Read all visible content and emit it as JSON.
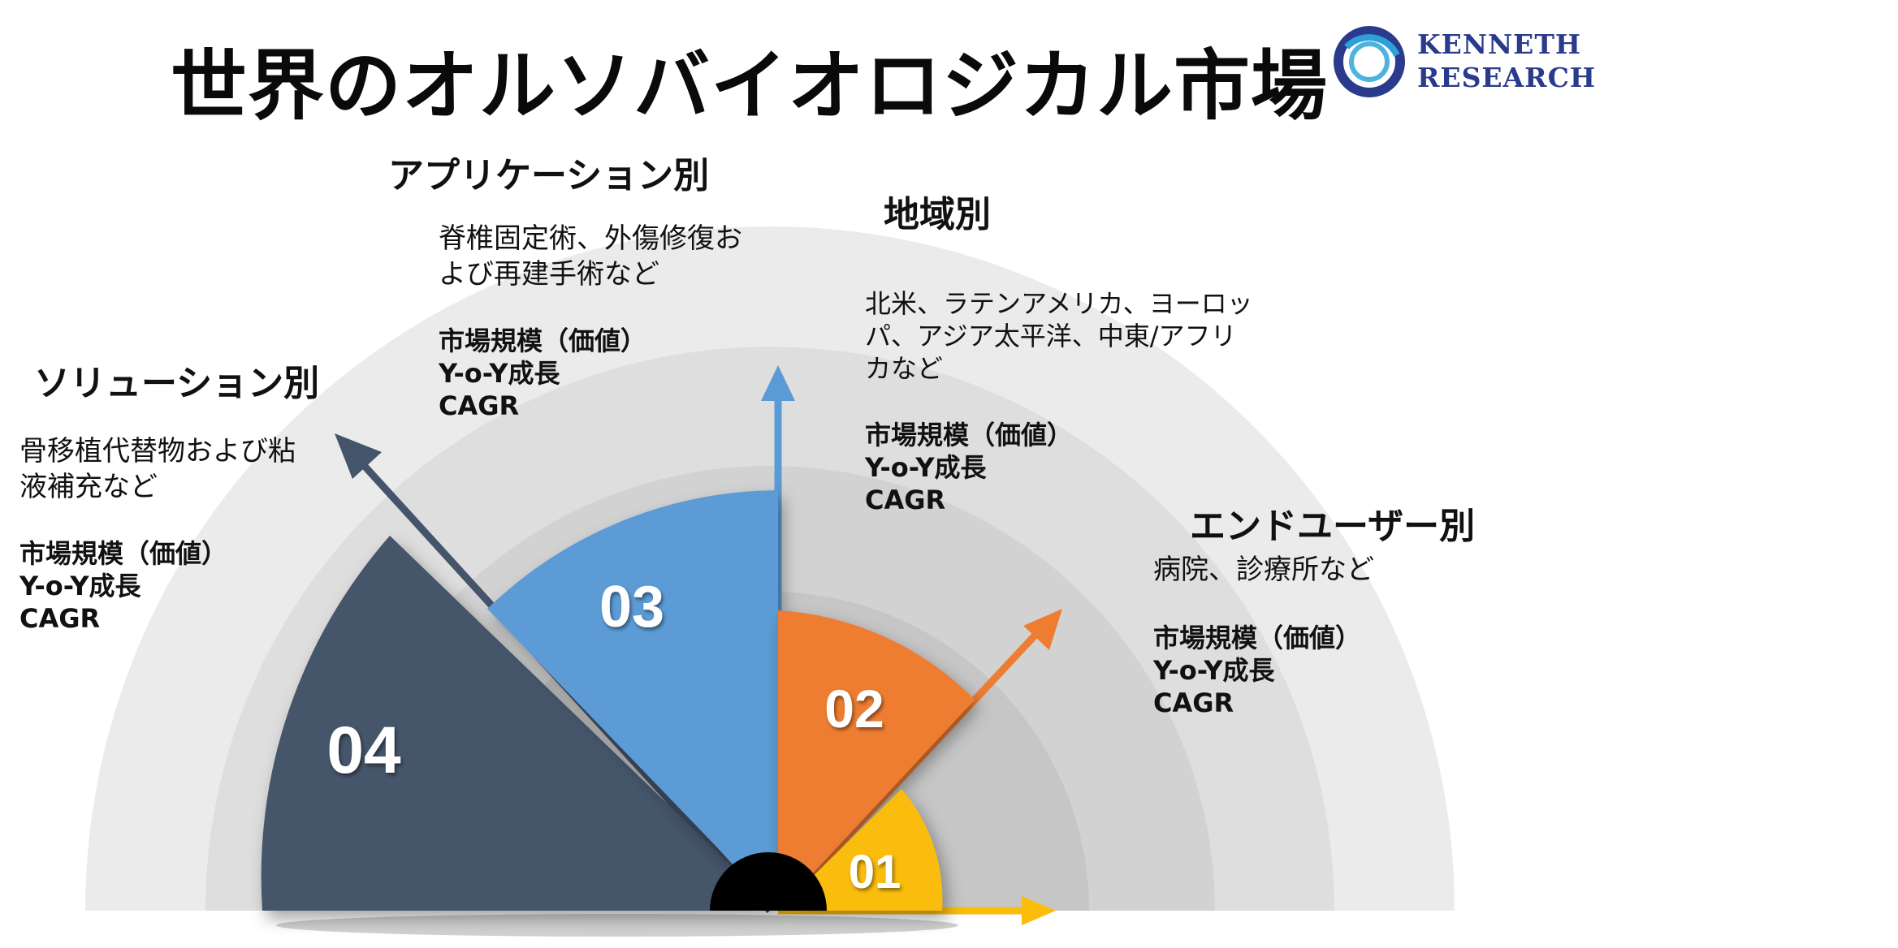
{
  "title": "世界のオルソバイオロジカル市場",
  "logo": {
    "line1": "KENNETH",
    "line2": "RESEARCH",
    "brand_color": "#2a3a8c"
  },
  "segments": [
    {
      "number": "01",
      "color": "#fbbd0a"
    },
    {
      "number": "02",
      "color": "#ee7d31",
      "heading": "地域別",
      "description_lines": [
        "北米、ラテンアメリカ、ヨーロッ",
        "パ、アジア太平洋、中東/アフリ",
        "カなど"
      ],
      "metrics": [
        "市場規模（価値）",
        "Y-o-Y成長",
        "CAGR"
      ]
    },
    {
      "number": "03",
      "color": "#5b9bd5",
      "heading": "アプリケーション別",
      "description_lines": [
        "脊椎固定術、外傷修復お",
        "よび再建手術など"
      ],
      "metrics": [
        "市場規模（価値）",
        "Y-o-Y成長",
        "CAGR"
      ]
    },
    {
      "number": "04",
      "color": "#44546a",
      "heading": "ソリューション別",
      "description_lines": [
        "骨移植代替物および粘",
        "液補充など"
      ],
      "metrics": [
        "市場規模（価値）",
        "Y-o-Y成長",
        "CAGR"
      ]
    },
    {
      "heading": "エンドユーザー別",
      "description_lines": [
        "病院、診療所など"
      ],
      "metrics": [
        "市場規模（価値）",
        "Y-o-Y成長",
        "CAGR"
      ]
    }
  ],
  "colors": {
    "ring_outer": "#ebebeb",
    "ring_2": "#dedede",
    "ring_3": "#d2d2d2",
    "ring_4": "#c6c6c6",
    "hub": "#000000"
  }
}
